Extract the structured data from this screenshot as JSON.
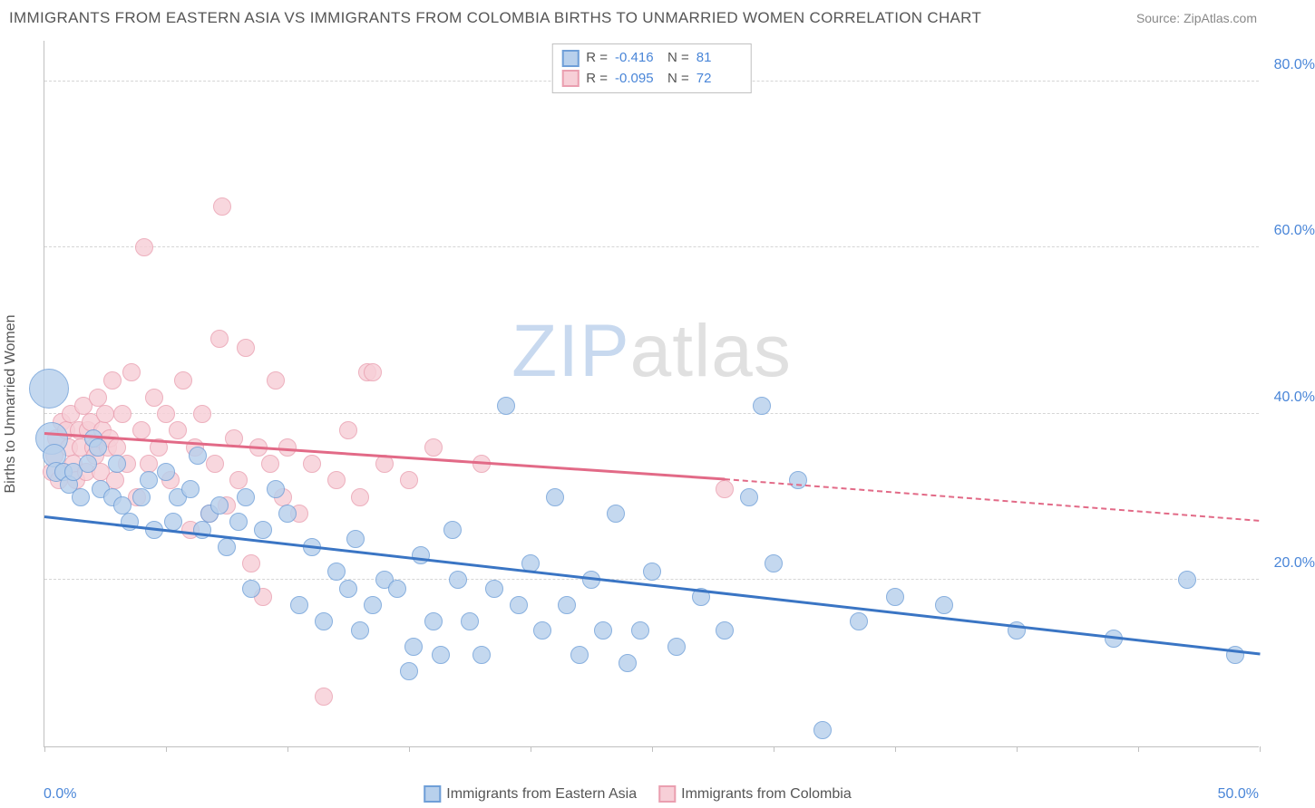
{
  "title": "IMMIGRANTS FROM EASTERN ASIA VS IMMIGRANTS FROM COLOMBIA BIRTHS TO UNMARRIED WOMEN CORRELATION CHART",
  "source": "Source: ZipAtlas.com",
  "watermark_zip": "ZIP",
  "watermark_atlas": "atlas",
  "ylabel": "Births to Unmarried Women",
  "chart": {
    "type": "scatter",
    "xlim": [
      0,
      50
    ],
    "ylim": [
      0,
      85
    ],
    "x_axis_label_left": "0.0%",
    "x_axis_label_right": "50.0%",
    "ytick_labels": [
      "20.0%",
      "40.0%",
      "60.0%",
      "80.0%"
    ],
    "ytick_values": [
      20,
      40,
      60,
      80
    ],
    "xtick_values": [
      0,
      5,
      10,
      15,
      20,
      25,
      30,
      35,
      40,
      45,
      50
    ],
    "gridline_color": "#d5d5d5",
    "axis_color": "#c0c0c0",
    "background": "#ffffff"
  },
  "series": {
    "a": {
      "label": "Immigrants from Eastern Asia",
      "fill": "#b8d0ec",
      "stroke": "#6f9fd8",
      "line_color": "#3a75c4",
      "R": "-0.416",
      "N": "81",
      "reg_start": [
        0,
        27.5
      ],
      "reg_end_solid": [
        50,
        11
      ],
      "points": [
        [
          0.2,
          43,
          22
        ],
        [
          0.3,
          37,
          18
        ],
        [
          0.4,
          35,
          13
        ],
        [
          0.5,
          33,
          11
        ],
        [
          0.8,
          33,
          10
        ],
        [
          1.0,
          31.5,
          10
        ],
        [
          1.2,
          33,
          10
        ],
        [
          1.5,
          30,
          10
        ],
        [
          1.8,
          34,
          10
        ],
        [
          2.0,
          37,
          10
        ],
        [
          2.3,
          31,
          10
        ],
        [
          2.2,
          36,
          10
        ],
        [
          2.8,
          30,
          10
        ],
        [
          3.0,
          34,
          10
        ],
        [
          3.2,
          29,
          10
        ],
        [
          3.5,
          27,
          10
        ],
        [
          4.0,
          30,
          10
        ],
        [
          4.3,
          32,
          10
        ],
        [
          4.5,
          26,
          10
        ],
        [
          5.0,
          33,
          10
        ],
        [
          5.3,
          27,
          10
        ],
        [
          5.5,
          30,
          10
        ],
        [
          6.0,
          31,
          10
        ],
        [
          6.3,
          35,
          10
        ],
        [
          6.5,
          26,
          10
        ],
        [
          6.8,
          28,
          10
        ],
        [
          7.2,
          29,
          10
        ],
        [
          7.5,
          24,
          10
        ],
        [
          8.0,
          27,
          10
        ],
        [
          8.3,
          30,
          10
        ],
        [
          8.5,
          19,
          10
        ],
        [
          9.0,
          26,
          10
        ],
        [
          9.5,
          31,
          10
        ],
        [
          10.0,
          28,
          10
        ],
        [
          10.5,
          17,
          10
        ],
        [
          11.0,
          24,
          10
        ],
        [
          11.5,
          15,
          10
        ],
        [
          12.0,
          21,
          10
        ],
        [
          12.5,
          19,
          10
        ],
        [
          12.8,
          25,
          10
        ],
        [
          13.0,
          14,
          10
        ],
        [
          13.5,
          17,
          10
        ],
        [
          14.0,
          20,
          10
        ],
        [
          14.5,
          19,
          10
        ],
        [
          15.0,
          9,
          10
        ],
        [
          15.2,
          12,
          10
        ],
        [
          15.5,
          23,
          10
        ],
        [
          16.0,
          15,
          10
        ],
        [
          16.3,
          11,
          10
        ],
        [
          16.8,
          26,
          10
        ],
        [
          17.0,
          20,
          10
        ],
        [
          17.5,
          15,
          10
        ],
        [
          18.0,
          11,
          10
        ],
        [
          18.5,
          19,
          10
        ],
        [
          19.0,
          41,
          10
        ],
        [
          19.5,
          17,
          10
        ],
        [
          20.0,
          22,
          10
        ],
        [
          20.5,
          14,
          10
        ],
        [
          21.0,
          30,
          10
        ],
        [
          21.5,
          17,
          10
        ],
        [
          22.0,
          11,
          10
        ],
        [
          22.5,
          20,
          10
        ],
        [
          23.0,
          14,
          10
        ],
        [
          23.5,
          28,
          10
        ],
        [
          24.0,
          10,
          10
        ],
        [
          24.5,
          14,
          10
        ],
        [
          25.0,
          21,
          10
        ],
        [
          26.0,
          12,
          10
        ],
        [
          27.0,
          18,
          10
        ],
        [
          28.0,
          14,
          10
        ],
        [
          29.0,
          30,
          10
        ],
        [
          29.5,
          41,
          10
        ],
        [
          30.0,
          22,
          10
        ],
        [
          31.0,
          32,
          10
        ],
        [
          32.0,
          2,
          10
        ],
        [
          33.5,
          15,
          10
        ],
        [
          35.0,
          18,
          10
        ],
        [
          37.0,
          17,
          10
        ],
        [
          40.0,
          14,
          10
        ],
        [
          44.0,
          13,
          10
        ],
        [
          47.0,
          20,
          10
        ],
        [
          49.0,
          11,
          10
        ]
      ]
    },
    "b": {
      "label": "Immigrants from Colombia",
      "fill": "#f7cfd7",
      "stroke": "#ea9fb0",
      "line_color": "#e26a87",
      "R": "-0.095",
      "N": "72",
      "reg_start": [
        0,
        37.5
      ],
      "reg_end_solid": [
        28,
        32
      ],
      "reg_end_dashed": [
        50,
        27
      ],
      "points": [
        [
          0.3,
          33,
          10
        ],
        [
          0.4,
          35,
          10
        ],
        [
          0.5,
          37,
          10
        ],
        [
          0.6,
          32,
          10
        ],
        [
          0.7,
          39,
          10
        ],
        [
          0.8,
          33,
          10
        ],
        [
          0.9,
          38,
          10
        ],
        [
          1.0,
          36,
          10
        ],
        [
          1.1,
          40,
          10
        ],
        [
          1.2,
          34,
          10
        ],
        [
          1.3,
          32,
          10
        ],
        [
          1.4,
          38,
          10
        ],
        [
          1.5,
          36,
          10
        ],
        [
          1.6,
          41,
          10
        ],
        [
          1.7,
          33,
          10
        ],
        [
          1.8,
          38,
          10
        ],
        [
          1.9,
          39,
          10
        ],
        [
          2.0,
          36,
          10
        ],
        [
          2.1,
          35,
          10
        ],
        [
          2.2,
          42,
          10
        ],
        [
          2.3,
          33,
          10
        ],
        [
          2.4,
          38,
          10
        ],
        [
          2.5,
          40,
          10
        ],
        [
          2.6,
          36,
          10
        ],
        [
          2.7,
          37,
          10
        ],
        [
          2.8,
          44,
          10
        ],
        [
          2.9,
          32,
          10
        ],
        [
          3.0,
          36,
          10
        ],
        [
          3.2,
          40,
          10
        ],
        [
          3.4,
          34,
          10
        ],
        [
          3.6,
          45,
          10
        ],
        [
          3.8,
          30,
          10
        ],
        [
          4.0,
          38,
          10
        ],
        [
          4.1,
          60,
          10
        ],
        [
          4.3,
          34,
          10
        ],
        [
          4.5,
          42,
          10
        ],
        [
          4.7,
          36,
          10
        ],
        [
          5.0,
          40,
          10
        ],
        [
          5.2,
          32,
          10
        ],
        [
          5.5,
          38,
          10
        ],
        [
          5.7,
          44,
          10
        ],
        [
          6.0,
          26,
          10
        ],
        [
          6.2,
          36,
          10
        ],
        [
          6.5,
          40,
          10
        ],
        [
          6.8,
          28,
          10
        ],
        [
          7.0,
          34,
          10
        ],
        [
          7.2,
          49,
          10
        ],
        [
          7.3,
          65,
          10
        ],
        [
          7.5,
          29,
          10
        ],
        [
          7.8,
          37,
          10
        ],
        [
          8.0,
          32,
          10
        ],
        [
          8.3,
          48,
          10
        ],
        [
          8.5,
          22,
          10
        ],
        [
          8.8,
          36,
          10
        ],
        [
          9.0,
          18,
          10
        ],
        [
          9.3,
          34,
          10
        ],
        [
          9.5,
          44,
          10
        ],
        [
          9.8,
          30,
          10
        ],
        [
          10.0,
          36,
          10
        ],
        [
          10.5,
          28,
          10
        ],
        [
          11.0,
          34,
          10
        ],
        [
          11.5,
          6,
          10
        ],
        [
          12.0,
          32,
          10
        ],
        [
          12.5,
          38,
          10
        ],
        [
          13.0,
          30,
          10
        ],
        [
          13.3,
          45,
          10
        ],
        [
          13.5,
          45,
          10
        ],
        [
          14.0,
          34,
          10
        ],
        [
          15.0,
          32,
          10
        ],
        [
          16.0,
          36,
          10
        ],
        [
          18.0,
          34,
          10
        ],
        [
          28.0,
          31,
          10
        ]
      ]
    }
  },
  "legend_labels": {
    "r_label": "R =",
    "n_label": "N ="
  }
}
